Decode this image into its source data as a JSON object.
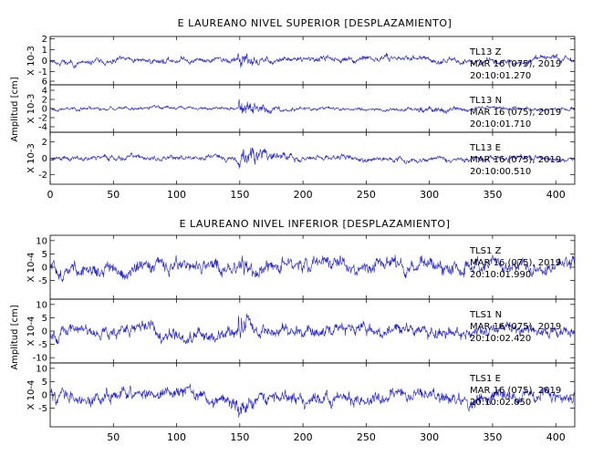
{
  "chart_data": [
    {
      "type": "line",
      "title": "E LAUREANO NIVEL SUPERIOR [DESPLAZAMIENTO]",
      "ylabel": "Amplitud [cm]",
      "xlim": [
        0,
        415
      ],
      "x_ticks": [
        "0",
        "50",
        "100",
        "150",
        "200",
        "250",
        "300",
        "350",
        "400"
      ],
      "panels": [
        {
          "name": "TL13 Z",
          "multiplier": "X 10-3",
          "ylim": [
            -2.2,
            2.2
          ],
          "y_ticks": [
            "2",
            "1",
            "0",
            "-1"
          ],
          "station": "TL13 Z",
          "date": "MAR 16 (075), 2019",
          "time": "20:10:01.270",
          "base_amp": 0.4,
          "burst_amp": 1.6,
          "burst": [
            148,
            175
          ],
          "seed": 11
        },
        {
          "name": "TL13 N",
          "multiplier": "X 10-3",
          "ylim": [
            -5.2,
            5.2
          ],
          "y_ticks": [
            "6",
            "4",
            "2",
            "0",
            "-2",
            "-4"
          ],
          "station": "TL13 N",
          "date": "MAR 16 (075), 2019",
          "time": "20:10:01.710",
          "base_amp": 0.6,
          "burst_amp": 3.6,
          "burst": [
            148,
            195
          ],
          "coda": [
            290,
            330
          ],
          "seed": 23
        },
        {
          "name": "TL13 E",
          "multiplier": "X 10-3",
          "ylim": [
            -3.2,
            3.2
          ],
          "y_ticks": [
            "2",
            "0",
            "-2"
          ],
          "station": "TL13 E",
          "date": "MAR 16 (075), 2019",
          "time": "20:10:00.510",
          "base_amp": 0.5,
          "burst_amp": 2.6,
          "burst": [
            148,
            200
          ],
          "seed": 37
        }
      ]
    },
    {
      "type": "line",
      "title": "E LAUREANO NIVEL INFERIOR [DESPLAZAMIENTO]",
      "ylabel": "Amplitud [cm]",
      "xlim": [
        0,
        415
      ],
      "x_ticks": [
        "50",
        "100",
        "150",
        "200",
        "250",
        "300",
        "350",
        "400"
      ],
      "panels": [
        {
          "name": "TLS1 Z",
          "multiplier": "X 10-4",
          "ylim": [
            -12,
            12
          ],
          "y_ticks": [
            "10",
            "5",
            "0",
            "-5"
          ],
          "station": "TLS1 Z",
          "date": "MAR 16 (075), 2019",
          "time": "20:10:01.990",
          "base_amp": 4.0,
          "burst_amp": 8.0,
          "burst": [
            148,
            172
          ],
          "seed": 51
        },
        {
          "name": "TLS1 N",
          "multiplier": "X 10-4",
          "ylim": [
            -12,
            12
          ],
          "y_ticks": [
            "10",
            "5",
            "0",
            "-5",
            "-10"
          ],
          "station": "TLS1 N",
          "date": "MAR 16 (075), 2019",
          "time": "20:10:02.420",
          "base_amp": 3.5,
          "burst_amp": 9.0,
          "burst": [
            148,
            175
          ],
          "seed": 67
        },
        {
          "name": "TLS1 E",
          "multiplier": "X 10-4",
          "ylim": [
            -12,
            12
          ],
          "y_ticks": [
            "10",
            "5",
            "0",
            "-5"
          ],
          "station": "TLS1 E",
          "date": "MAR 16 (075), 2019",
          "time": "20:10:02.050",
          "base_amp": 3.8,
          "burst_amp": 7.0,
          "burst": [
            148,
            170
          ],
          "seed": 83
        }
      ]
    }
  ],
  "colors": {
    "trace": "#1f1fe0",
    "frame": "#000000"
  }
}
